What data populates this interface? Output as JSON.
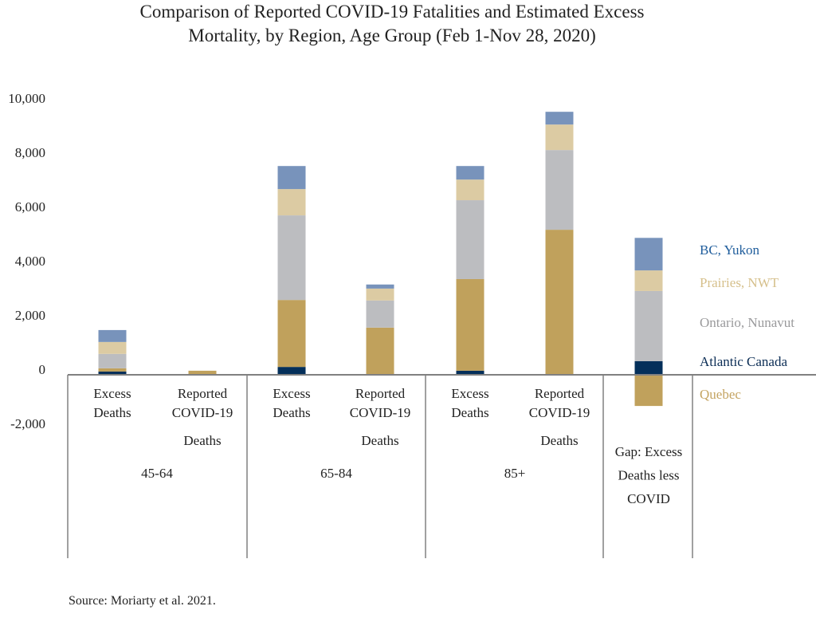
{
  "chart_data": {
    "type": "bar",
    "stacked": true,
    "title": [
      "Comparison of Reported COVID-19 Fatalities and Estimated Excess",
      "Mortality, by Region, Age Group (Feb 1-Nov 28, 2020)"
    ],
    "xlabel": "",
    "ylabel": "",
    "ylim": [
      -2000,
      10000
    ],
    "yticks": [
      "10,000",
      "8,000",
      "6,000",
      "4,000",
      "2,000",
      "0",
      "-2,000"
    ],
    "ytick_values": [
      10000,
      8000,
      6000,
      4000,
      2000,
      0,
      -2000
    ],
    "categories": [
      {
        "label": [
          "Excess",
          "Deaths"
        ],
        "group": 0
      },
      {
        "label": [
          "Reported",
          "COVID-19",
          "Deaths"
        ],
        "group": 0
      },
      {
        "label": [
          "Excess",
          "Deaths"
        ],
        "group": 1
      },
      {
        "label": [
          "Reported",
          "COVID-19",
          "Deaths"
        ],
        "group": 1
      },
      {
        "label": [
          "Excess",
          "Deaths"
        ],
        "group": 2
      },
      {
        "label": [
          "Reported",
          "COVID-19",
          "Deaths"
        ],
        "group": 2
      },
      {
        "label": [
          "Gap: Excess",
          "Deaths less",
          "COVID"
        ],
        "group": 3
      }
    ],
    "groups": [
      "45-64",
      "65-84",
      "85+",
      ""
    ],
    "series": [
      {
        "name": "Atlantic Canada",
        "color": "#042f5a",
        "label_color": "#0b2d55",
        "values": [
          120,
          0,
          290,
          0,
          150,
          0,
          500
        ]
      },
      {
        "name": "Quebec",
        "color": "#c0a15c",
        "label_color": "#c4a462",
        "values": [
          120,
          150,
          2470,
          1740,
          3380,
          5350,
          -1150
        ]
      },
      {
        "name": "Ontario, Nunavut",
        "color": "#bcbdc0",
        "label_color": "#9a9a9c",
        "values": [
          530,
          0,
          3120,
          1000,
          2910,
          2940,
          2590
        ]
      },
      {
        "name": "Prairies, NWT",
        "color": "#dccba3",
        "label_color": "#d6c08c",
        "values": [
          440,
          0,
          970,
          440,
          760,
          940,
          760
        ]
      },
      {
        "name": "BC, Yukon",
        "color": "#7893bb",
        "label_color": "#1f5d9c",
        "values": [
          440,
          0,
          850,
          150,
          500,
          470,
          1200
        ]
      }
    ],
    "legend_order": [
      "BC, Yukon",
      "Prairies, NWT",
      "Ontario, Nunavut",
      "Atlantic Canada",
      "Quebec"
    ],
    "legend_position": "right",
    "grid": false
  },
  "source": "Source: Moriarty et al. 2021."
}
